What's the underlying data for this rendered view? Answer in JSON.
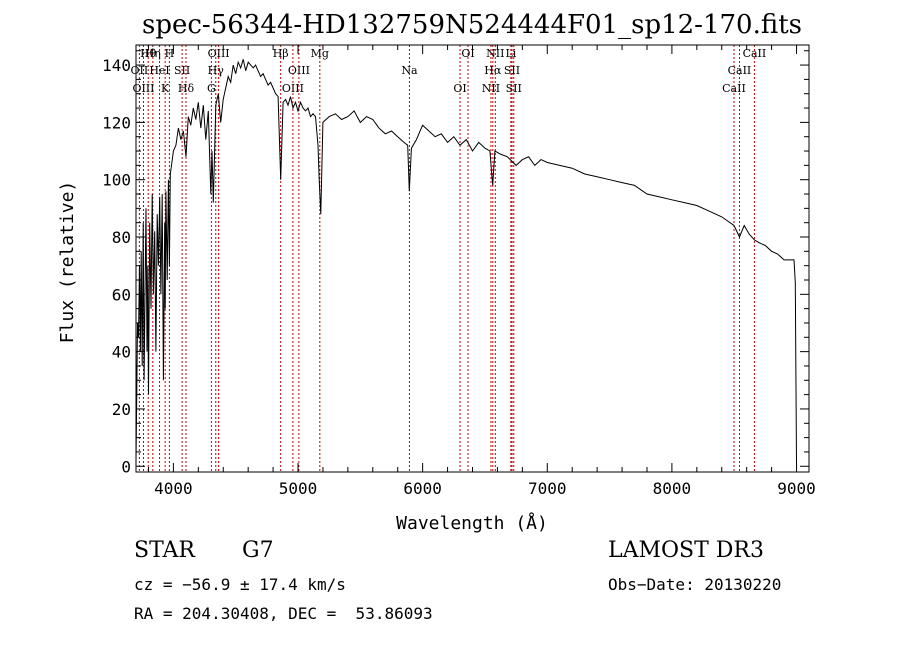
{
  "title": "spec-56344-HD132759N524444F01_sp12-170.fits",
  "chart_data": {
    "type": "line",
    "xlabel": "Wavelength (Å)",
    "ylabel": "Flux (relative)",
    "xlim": [
      3700,
      9100
    ],
    "ylim": [
      -2,
      147
    ],
    "xticks": [
      4000,
      5000,
      6000,
      7000,
      8000,
      9000
    ],
    "yticks": [
      0,
      20,
      40,
      60,
      80,
      100,
      120,
      140
    ],
    "grid": false,
    "legend": "none",
    "series": [
      {
        "x": [
          3700,
          3705,
          3712,
          3720,
          3728,
          3735,
          3742,
          3750,
          3758,
          3765,
          3772,
          3780,
          3788,
          3795,
          3800,
          3810,
          3820,
          3830,
          3840,
          3850,
          3860,
          3870,
          3880,
          3890,
          3900,
          3910,
          3920,
          3930,
          3934,
          3940,
          3950,
          3960,
          3968,
          3975,
          3985,
          4000,
          4020,
          4040,
          4060,
          4080,
          4101,
          4120,
          4140,
          4160,
          4180,
          4200,
          4220,
          4240,
          4260,
          4280,
          4300,
          4310,
          4320,
          4340,
          4360,
          4380,
          4400,
          4420,
          4440,
          4460,
          4480,
          4500,
          4520,
          4540,
          4560,
          4580,
          4600,
          4620,
          4640,
          4660,
          4680,
          4700,
          4720,
          4740,
          4760,
          4780,
          4800,
          4820,
          4840,
          4861,
          4880,
          4900,
          4920,
          4940,
          4960,
          4980,
          5000,
          5020,
          5040,
          5060,
          5080,
          5100,
          5120,
          5140,
          5160,
          5170,
          5183,
          5200,
          5250,
          5300,
          5350,
          5400,
          5450,
          5500,
          5550,
          5600,
          5650,
          5700,
          5750,
          5800,
          5850,
          5880,
          5893,
          5910,
          5950,
          6000,
          6050,
          6100,
          6150,
          6200,
          6250,
          6300,
          6350,
          6400,
          6450,
          6500,
          6540,
          6562,
          6580,
          6620,
          6680,
          6750,
          6800,
          6850,
          6900,
          6950,
          7000,
          7100,
          7200,
          7300,
          7400,
          7500,
          7600,
          7700,
          7800,
          7900,
          8000,
          8100,
          8200,
          8300,
          8400,
          8498,
          8542,
          8580,
          8620,
          8662,
          8700,
          8750,
          8800,
          8850,
          8900,
          8950,
          8980,
          8990,
          9000
        ],
        "y": [
          2,
          20,
          50,
          45,
          70,
          40,
          75,
          35,
          85,
          30,
          60,
          90,
          40,
          70,
          25,
          85,
          55,
          95,
          60,
          82,
          40,
          88,
          70,
          94,
          60,
          95,
          30,
          85,
          55,
          96,
          65,
          100,
          70,
          102,
          105,
          110,
          112,
          118,
          114,
          117,
          108,
          122,
          119,
          125,
          121,
          127,
          118,
          126,
          114,
          124,
          95,
          110,
          92,
          126,
          130,
          120,
          128,
          132,
          136,
          134,
          140,
          137,
          141,
          139,
          142,
          138,
          141,
          140,
          139,
          140,
          138,
          136,
          137,
          135,
          133,
          134,
          132,
          130,
          129,
          100,
          127,
          128,
          126,
          129,
          125,
          127,
          124,
          127,
          125,
          124,
          125,
          122,
          123,
          122,
          112,
          100,
          88,
          120,
          122,
          123,
          121,
          122,
          124,
          120,
          122,
          121,
          118,
          116,
          117,
          115,
          113,
          112,
          96,
          111,
          114,
          119,
          117,
          115,
          116,
          113,
          115,
          112,
          114,
          110,
          113,
          111,
          110,
          98,
          110,
          109,
          108,
          105,
          107,
          108,
          105,
          107,
          106,
          105,
          104,
          102,
          101,
          100,
          99,
          98,
          95,
          94,
          93,
          92,
          91,
          89,
          87,
          84,
          80,
          84,
          81,
          79,
          78,
          77,
          75,
          74,
          72,
          72,
          72,
          64,
          1
        ]
      }
    ],
    "lines": [
      {
        "label": "Hθ",
        "x": 3798
      },
      {
        "label": "OII",
        "x": 3727
      },
      {
        "label": "OIII",
        "x": 3760
      },
      {
        "label": "Hη",
        "x": 3835
      },
      {
        "label": "HeI",
        "x": 3889
      },
      {
        "label": "K",
        "x": 3934
      },
      {
        "label": "H",
        "x": 3968
      },
      {
        "label": "SII",
        "x": 4070
      },
      {
        "label": "Hδ",
        "x": 4101
      },
      {
        "label": "OIII",
        "x": 4363
      },
      {
        "label": "Hγ",
        "x": 4340
      },
      {
        "label": "G",
        "x": 4305
      },
      {
        "label": "Hβ",
        "x": 4861
      },
      {
        "label": "OIII",
        "x": 5007
      },
      {
        "label": "OIII",
        "x": 4959
      },
      {
        "label": "Mg",
        "x": 5175
      },
      {
        "label": "Na",
        "x": 5894
      },
      {
        "label": "OI",
        "x": 6300
      },
      {
        "label": "OI",
        "x": 6364
      },
      {
        "label": "Hα",
        "x": 6563
      },
      {
        "label": "NII",
        "x": 6548
      },
      {
        "label": "NII",
        "x": 6583
      },
      {
        "label": "SII",
        "x": 6717
      },
      {
        "label": "SII",
        "x": 6731
      },
      {
        "label": "Li",
        "x": 6708
      },
      {
        "label": "CaII",
        "x": 8542
      },
      {
        "label": "CaII",
        "x": 8498
      },
      {
        "label": "CaII",
        "x": 8662
      }
    ]
  },
  "info": {
    "object_class": "STAR",
    "subclass": "G7",
    "survey": "LAMOST DR3",
    "cz": "cz = −56.9 ± 17.4 km/s",
    "obs_date": "Obs−Date: 20130220",
    "coords": "RA = 204.30408, DEC =  53.86093"
  }
}
